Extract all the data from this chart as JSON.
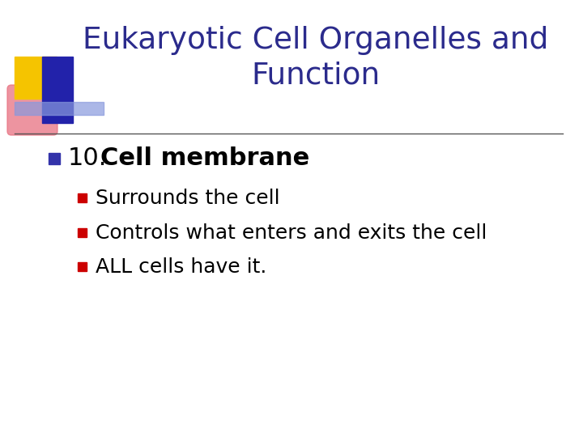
{
  "title_line1": "Eukaryotic Cell Organelles and",
  "title_line2": "Function",
  "title_color": "#2B2B8C",
  "background_color": "#FFFFFF",
  "sub_bullets": [
    "Surrounds the cell",
    "Controls what enters and exits the cell",
    "ALL cells have it."
  ],
  "sub_bullet_color": "#000000",
  "bullet_square_color": "#3333AA",
  "sub_bullet_square_color": "#CC0000",
  "separator_line_color": "#555555",
  "deco_yellow": "#F5C400",
  "deco_pink": "#E87080",
  "deco_blue_dark": "#2222AA",
  "deco_blue_light": "#8899DD"
}
